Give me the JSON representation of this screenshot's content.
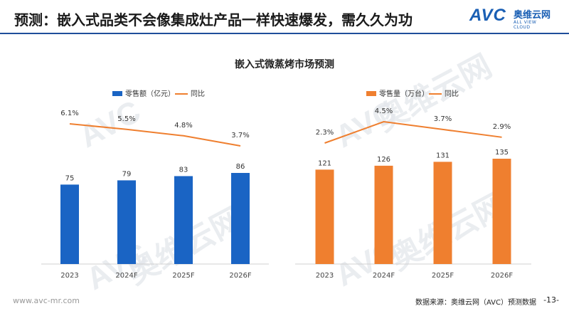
{
  "header": {
    "title": "预测：嵌入式品类不会像集成灶产品一样快速爆发，需久久为功",
    "logo_text": "AVC",
    "logo_cn": "奥维云网",
    "logo_en": "ALL VIEW CLOUD"
  },
  "watermark": {
    "logo": "AVC",
    "text": "奥维云网",
    "subtext": "ALL VIEW CLOUD"
  },
  "colors": {
    "blue_bar": "#1a64c4",
    "orange_bar": "#ef7f2f",
    "line": "#ef7f2f",
    "accent": "#1f4e9b"
  },
  "chart_data": [
    {
      "type": "bar",
      "title": "嵌入式微蒸烤市场预测",
      "categories": [
        "2023",
        "2024F",
        "2025F",
        "2026F"
      ],
      "series": [
        {
          "name": "零售额（亿元）",
          "type": "bar",
          "values": [
            75,
            79,
            83,
            86
          ],
          "labels": [
            "75",
            "79",
            "83",
            "86"
          ]
        },
        {
          "name": "同比",
          "type": "line",
          "values": [
            6.1,
            5.5,
            4.8,
            3.7
          ],
          "labels": [
            "6.1%",
            "5.5%",
            "4.8%",
            "3.7%"
          ]
        }
      ]
    },
    {
      "type": "bar",
      "categories": [
        "2023",
        "2024F",
        "2025F",
        "2026F"
      ],
      "series": [
        {
          "name": "零售量（万台）",
          "type": "bar",
          "values": [
            121,
            126,
            131,
            135
          ],
          "labels": [
            "121",
            "126",
            "131",
            "135"
          ]
        },
        {
          "name": "同比",
          "type": "line",
          "values": [
            2.3,
            4.5,
            3.7,
            2.9
          ],
          "labels": [
            "2.3%",
            "4.5%",
            "3.7%",
            "2.9%"
          ]
        }
      ]
    }
  ],
  "footer": {
    "url": "www.avc-mr.com",
    "source": "数据来源：奥维云网（AVC）预测数据",
    "page": "-13-"
  }
}
